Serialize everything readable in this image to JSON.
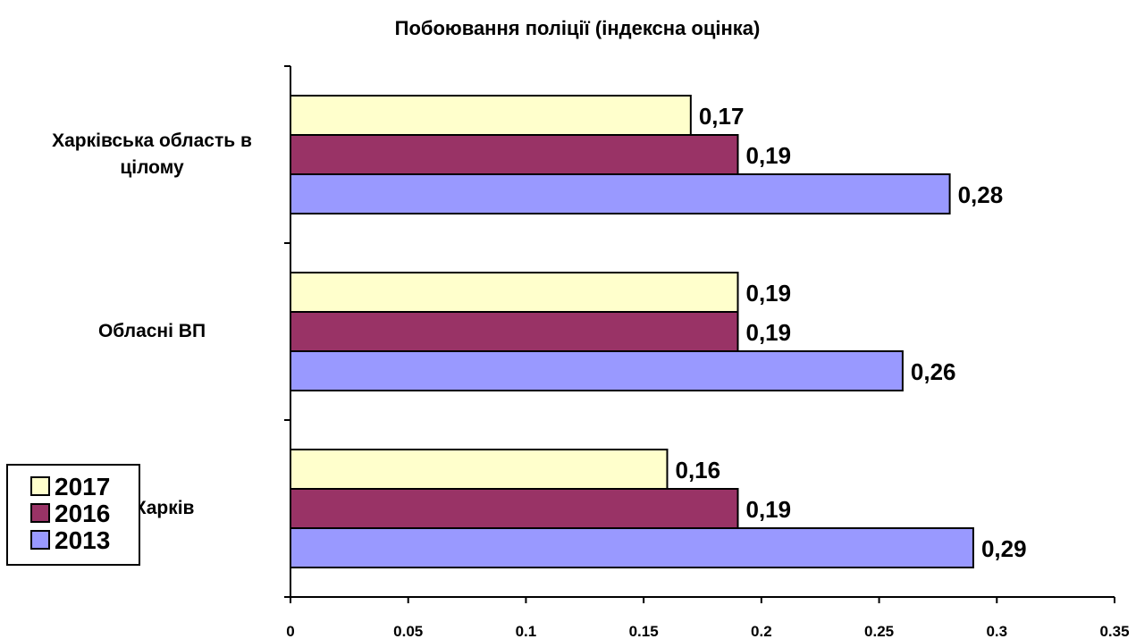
{
  "chart_data": {
    "type": "bar",
    "orientation": "horizontal",
    "title": "Побоювання поліції (індексна оцінка)",
    "xlabel": "",
    "ylabel": "",
    "categories": [
      "Харківська область в цілому",
      "Обласні ВП",
      "м. Харків"
    ],
    "category_lines": [
      [
        "Харківська область в",
        "цілому"
      ],
      [
        "Обласні ВП"
      ],
      [
        "м. Харків"
      ]
    ],
    "series": [
      {
        "name": "2017",
        "color": "#FFFFCC",
        "values": [
          0.17,
          0.19,
          0.16
        ],
        "labels": [
          "0,17",
          "0,19",
          "0,16"
        ]
      },
      {
        "name": "2016",
        "color": "#993366",
        "values": [
          0.19,
          0.19,
          0.19
        ],
        "labels": [
          "0,19",
          "0,19",
          "0,19"
        ]
      },
      {
        "name": "2013",
        "color": "#9999FF",
        "values": [
          0.28,
          0.26,
          0.29
        ],
        "labels": [
          "0,28",
          "0,26",
          "0,29"
        ]
      }
    ],
    "xlim": [
      0,
      0.35
    ],
    "xticks": [
      0,
      0.05,
      0.1,
      0.15,
      0.2,
      0.25,
      0.3,
      0.35
    ],
    "xtick_labels": [
      "0",
      "0.05",
      "0.1",
      "0.15",
      "0.2",
      "0.25",
      "0.3",
      "0.35"
    ],
    "grid": false,
    "legend_position": "bottom-left"
  }
}
